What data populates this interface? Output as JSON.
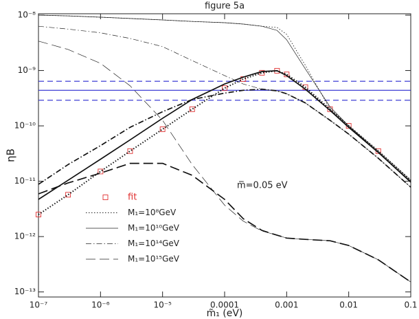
{
  "chart_data": {
    "type": "line",
    "title": "figure 5a",
    "x_label": "m̃₁ (eV)",
    "y_label": "ηB",
    "annotation": "m̅=0.05 eV",
    "xscale": "log",
    "yscale": "log",
    "xlim": [
      1e-07,
      0.1
    ],
    "ylim": [
      8.1e-14,
      1.06e-08
    ],
    "xticks": [
      {
        "value": 1e-07,
        "label": "10⁻⁷"
      },
      {
        "value": 1e-06,
        "label": "10⁻⁶"
      },
      {
        "value": 1e-05,
        "label": "10⁻⁵"
      },
      0.0001,
      0.001,
      0.01,
      0.1
    ],
    "yticks": [
      {
        "value": 1e-13,
        "label": "10⁻¹³"
      },
      {
        "value": 1e-12,
        "label": "10⁻¹²"
      },
      {
        "value": 1e-11,
        "label": "10⁻¹¹"
      },
      {
        "value": 1e-10,
        "label": "10⁻¹⁰"
      },
      {
        "value": 1e-09,
        "label": "10⁻⁹"
      },
      {
        "value": 1e-08,
        "label": "10⁻⁸"
      }
    ],
    "legend": "lower left",
    "x": [
      1e-07,
      3e-07,
      1e-06,
      3e-06,
      1e-05,
      3e-05,
      0.0001,
      0.0002,
      0.0004,
      0.0007,
      0.001,
      0.002,
      0.005,
      0.01,
      0.03,
      0.1
    ],
    "hlines": [
      {
        "value": 6.4e-10,
        "color": "#2a2ad0",
        "dash": "dashed"
      },
      {
        "value": 4.4e-10,
        "color": "#2a2ad0",
        "dash": "solid"
      },
      {
        "value": 2.9e-10,
        "color": "#2a2ad0",
        "dash": "dashed"
      }
    ],
    "series": [
      {
        "name": "fit",
        "type": "scatter",
        "color": "#e03030",
        "values": [
          2.5e-12,
          5.7e-12,
          1.5e-11,
          3.5e-11,
          8.7e-11,
          2e-10,
          4.8e-10,
          7e-10,
          9.1e-10,
          9.9e-10,
          8.5e-10,
          5e-10,
          2e-10,
          1e-10,
          3.5e-11,
          null
        ]
      },
      {
        "name": "M₁=10⁸GeV",
        "color": "#222",
        "dash": "dotted",
        "width": 0.9,
        "values": [
          1e-08,
          9.7e-09,
          9.2e-09,
          8.7e-09,
          8.2e-09,
          7.7e-09,
          7.3e-09,
          6.9e-09,
          6.3e-09,
          6e-09,
          4.5e-09,
          1.24e-09,
          2e-10,
          1e-10,
          3.5e-11,
          1.04e-11
        ]
      },
      {
        "name": "M₁=10¹⁰GeV",
        "color": "#222",
        "dash": "solid",
        "width": 0.7,
        "values": [
          1e-08,
          9.7e-09,
          9.2e-09,
          8.7e-09,
          8.2e-09,
          7.7e-09,
          7.3e-09,
          6.9e-09,
          6.3e-09,
          5.3e-09,
          3.6e-09,
          1.07e-09,
          2.2e-10,
          1e-10,
          3.3e-11,
          9.9e-12
        ]
      },
      {
        "name": "M₁=10¹⁴GeV",
        "color": "#222",
        "dash": "dashdot",
        "width": 0.7,
        "values": [
          6.3e-09,
          5.6e-09,
          4.8e-09,
          3.8e-09,
          2.7e-09,
          1.51e-09,
          8.1e-10,
          5.7e-10,
          4.6e-10,
          4.3e-10,
          3.8e-10,
          2.6e-10,
          1.26e-10,
          7.1e-11,
          2.6e-11,
          7.8e-12
        ]
      },
      {
        "name": "M₁=10¹⁵GeV",
        "color": "#222",
        "dash": "longdash",
        "width": 0.7,
        "values": [
          3.4e-09,
          2.4e-09,
          1.35e-09,
          5.3e-10,
          1.26e-10,
          2e-11,
          3.7e-12,
          1.9e-12,
          1.26e-12,
          1.06e-12,
          9.4e-13,
          8.9e-13,
          8.4e-13,
          6.9e-13,
          3.8e-13,
          1.51e-13
        ]
      },
      {
        "color": "#111",
        "dash": "dotted",
        "width": 2,
        "values": [
          2.5e-12,
          5.7e-12,
          1.5e-11,
          3.5e-11,
          8.7e-11,
          2e-10,
          4.8e-10,
          7e-10,
          9.1e-10,
          9.9e-10,
          8.5e-10,
          5e-10,
          2e-10,
          1e-10,
          3.5e-11,
          1.04e-11
        ]
      },
      {
        "color": "#111",
        "dash": "solid",
        "width": 1.7,
        "values": [
          4.7e-12,
          1.04e-11,
          2.5e-11,
          5.6e-11,
          1.37e-10,
          3e-10,
          5.7e-10,
          7.6e-10,
          9.6e-10,
          9.9e-10,
          8.1e-10,
          4.6e-10,
          1.9e-10,
          9.4e-11,
          3.3e-11,
          9.6e-12
        ]
      },
      {
        "color": "#111",
        "dash": "dashdot",
        "width": 1.7,
        "values": [
          8.8e-12,
          2e-11,
          4.4e-11,
          9.4e-11,
          1.8e-10,
          3e-10,
          3.9e-10,
          4.4e-10,
          4.6e-10,
          4.3e-10,
          3.8e-10,
          2.6e-10,
          1.26e-10,
          7.1e-11,
          2.6e-11,
          7.8e-12
        ]
      },
      {
        "color": "#111",
        "dash": "longdash",
        "width": 1.7,
        "values": [
          5.9e-12,
          9.3e-12,
          1.4e-11,
          2.1e-11,
          2.1e-11,
          1.28e-11,
          4.7e-12,
          2.1e-12,
          1.29e-12,
          1.06e-12,
          9.4e-13,
          8.9e-13,
          8.4e-13,
          6.9e-13,
          3.8e-13,
          1.51e-13
        ]
      }
    ]
  }
}
